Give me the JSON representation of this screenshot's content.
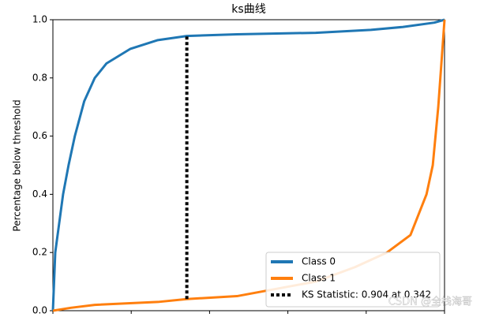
{
  "chart_data": {
    "type": "line",
    "title": "ks曲线",
    "y_label": "Percentage below threshold",
    "xlim": [
      0,
      1
    ],
    "xticks": [
      0,
      0.2,
      0.4,
      0.6,
      0.8,
      1
    ],
    "ylim": [
      0,
      1
    ],
    "yticks": [
      {
        "value": 0,
        "label": "0.0"
      },
      0.2,
      0.4,
      0.6,
      0.8,
      {
        "value": 1,
        "label": "1.0"
      }
    ],
    "grid": false,
    "legend": "lower right",
    "series": [
      {
        "name": "Class 0",
        "color": "#1f77b4",
        "x": [
          0,
          0.006,
          0.016,
          0.026,
          0.04,
          0.056,
          0.08,
          0.107,
          0.137,
          0.198,
          0.268,
          0.342,
          0.47,
          0.671,
          0.812,
          0.893,
          0.974,
          1
        ],
        "values": [
          0,
          0.2,
          0.3,
          0.4,
          0.5,
          0.6,
          0.72,
          0.8,
          0.85,
          0.9,
          0.93,
          0.944,
          0.95,
          0.955,
          0.965,
          0.975,
          0.99,
          1
        ]
      },
      {
        "name": "Class 1",
        "color": "#ff7f0e",
        "x": [
          0,
          0.046,
          0.107,
          0.268,
          0.342,
          0.47,
          0.55,
          0.671,
          0.772,
          0.853,
          0.913,
          0.954,
          0.97,
          0.984,
          1
        ],
        "values": [
          0,
          0.01,
          0.02,
          0.03,
          0.04,
          0.05,
          0.07,
          0.1,
          0.15,
          0.2,
          0.26,
          0.4,
          0.5,
          0.7,
          1
        ]
      }
    ],
    "ks": {
      "name": "KS Statistic: 0.904 at 0.342",
      "x": 0.342,
      "lower": 0.04,
      "upper": 0.944,
      "color": "#000000"
    },
    "watermark": "CSDN @全栈海哥"
  }
}
